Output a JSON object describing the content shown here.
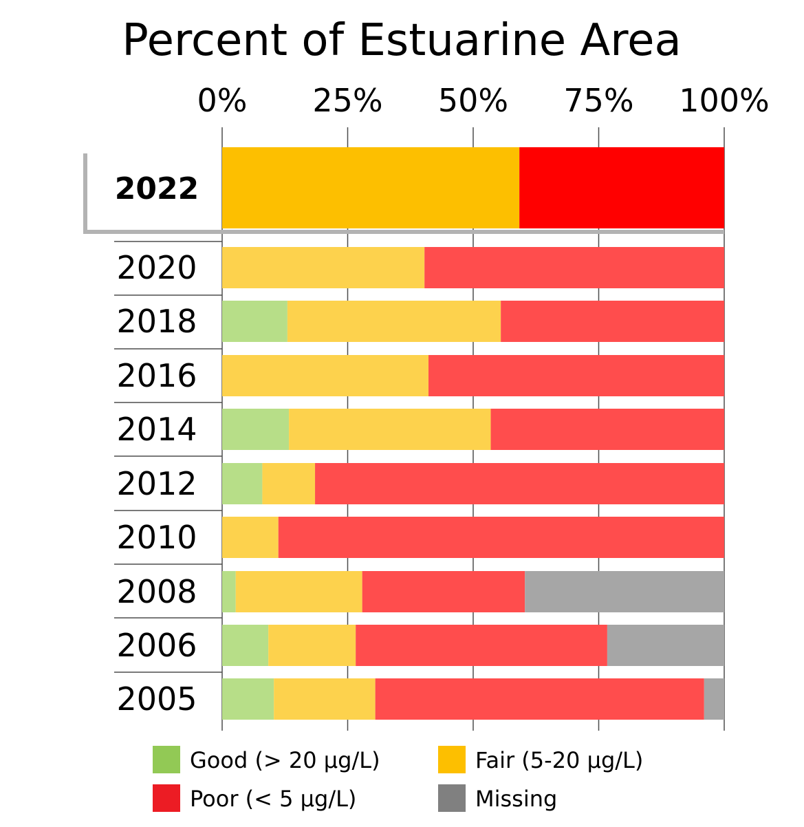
{
  "chart_data": {
    "type": "bar",
    "orientation": "horizontal",
    "stacked": true,
    "title": "Percent of Estuarine Area",
    "xlim": [
      0,
      100
    ],
    "x_tick_labels": [
      "0%",
      "25%",
      "50%",
      "75%",
      "100%"
    ],
    "x_ticks": [
      0,
      25,
      50,
      75,
      100
    ],
    "grid": true,
    "highlighted_category": "2022",
    "categories": [
      "2022",
      "2020",
      "2018",
      "2016",
      "2014",
      "2012",
      "2010",
      "2008",
      "2006",
      "2005"
    ],
    "series": [
      {
        "name": "Good (> 20 µg/L)",
        "key": "good",
        "values": [
          0,
          0,
          13,
          0,
          13.3,
          8,
          0,
          2.7,
          9.2,
          10.3
        ]
      },
      {
        "name": "Fair (5-20 µg/L)",
        "key": "fair",
        "values": [
          59.2,
          40.3,
          42.5,
          41.1,
          40.2,
          10.5,
          11.2,
          25.2,
          17.4,
          20.2
        ]
      },
      {
        "name": "Poor (< 5 µg/L)",
        "key": "poor",
        "values": [
          40.8,
          59.7,
          44.5,
          58.9,
          46.5,
          81.5,
          88.8,
          32.4,
          50.1,
          65.5
        ]
      },
      {
        "name": "Missing",
        "key": "missing",
        "values": [
          0,
          0,
          0,
          0,
          0,
          0,
          0,
          39.7,
          23.3,
          4.0
        ]
      }
    ],
    "legend_position": "bottom",
    "colors": {
      "legend": {
        "good": "#92c955",
        "fair": "#fdbf00",
        "poor": "#ec1c24",
        "missing": "#808080"
      },
      "highlight": {
        "good": "#92c955",
        "fair": "#fdbf00",
        "poor": "#ff0000",
        "missing": "#808080"
      },
      "bars": {
        "good": "#b7de88",
        "fair": "#fdd24d",
        "poor": "#ff4d4d",
        "missing": "#a6a6a6"
      }
    }
  }
}
